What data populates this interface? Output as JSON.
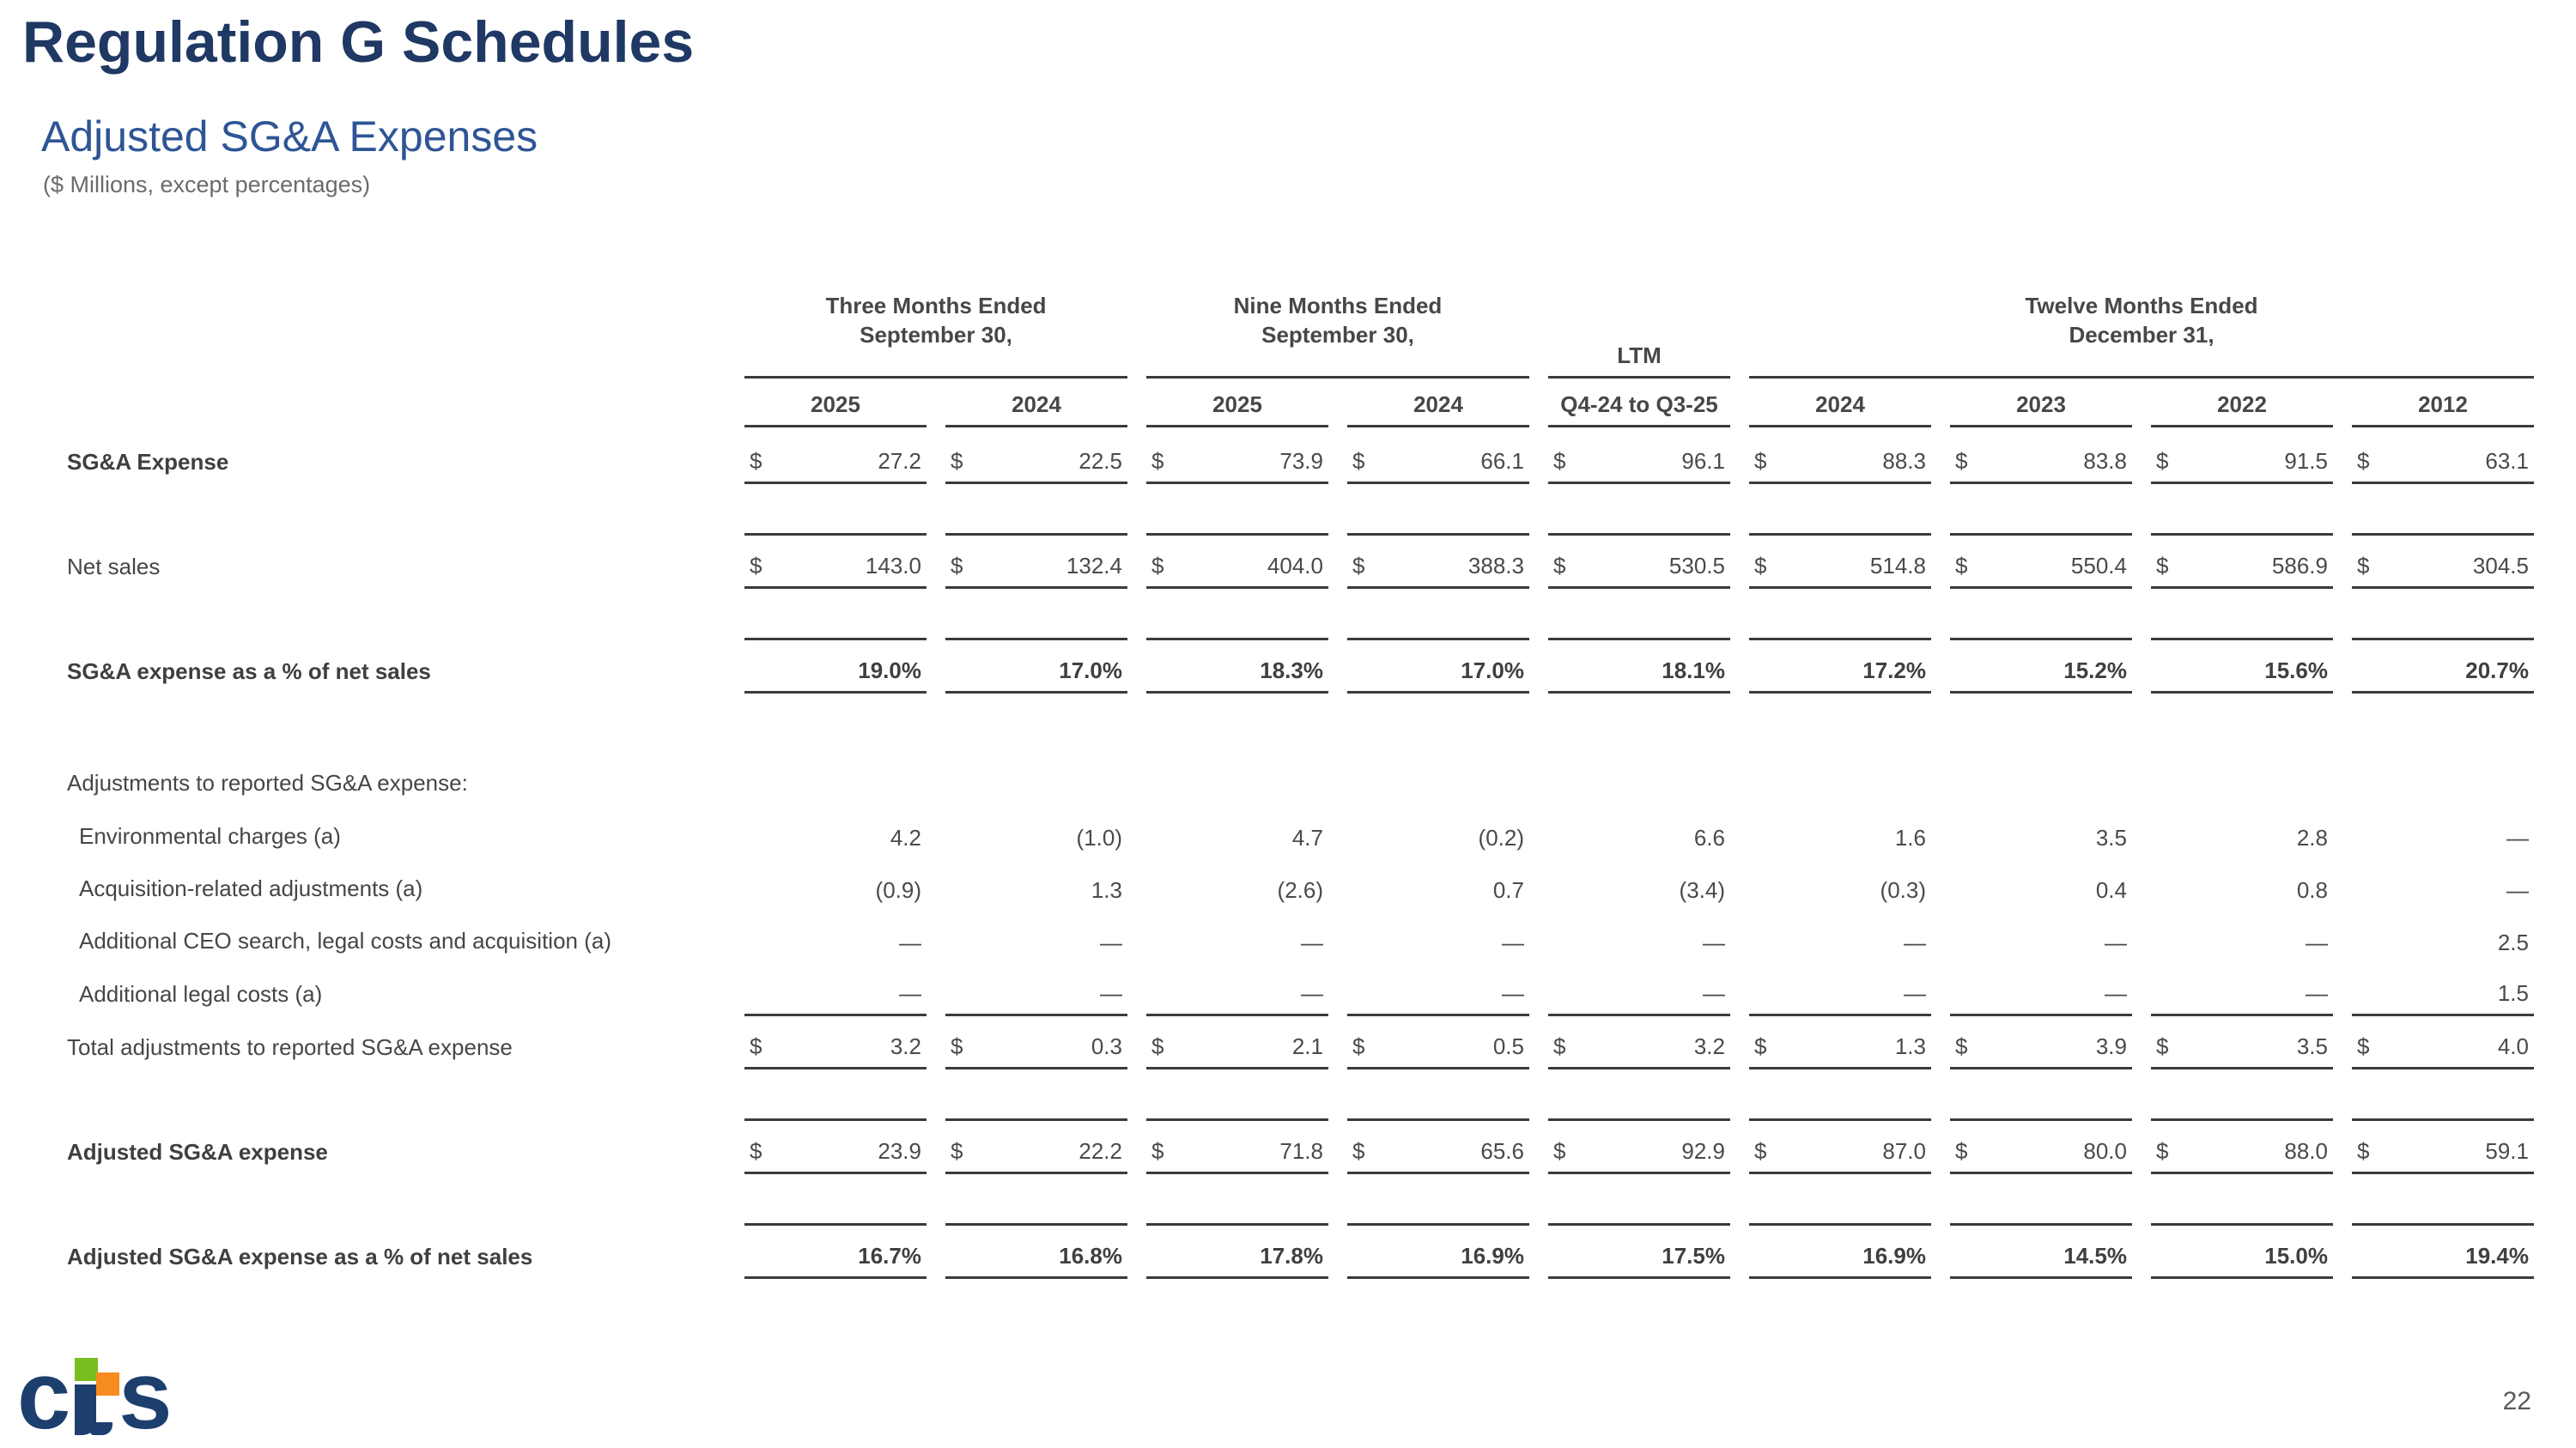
{
  "slide": {
    "title": "Regulation G Schedules",
    "subtitle": "Adjusted SG&A Expenses",
    "units_note": "($ Millions, except percentages)",
    "page_number": "22",
    "logo": {
      "c": "c",
      "s": "s",
      "name": "cts"
    },
    "colors": {
      "title_navy": "#1f3864",
      "subtitle_blue": "#2e5596",
      "text_gray": "#464646",
      "rule_gray": "#3b3b3b",
      "logo_navy": "#1c3f6e",
      "logo_green": "#78be20",
      "logo_orange": "#f68b1f"
    }
  },
  "table": {
    "dollar_sign": "$",
    "column_groups": [
      {
        "label": "Three Months Ended\nSeptember 30,",
        "span": 2
      },
      {
        "label": "Nine Months Ended\nSeptember 30,",
        "span": 2
      },
      {
        "label": "LTM",
        "span": 1
      },
      {
        "label": "Twelve Months Ended\nDecember 31,",
        "span": 4
      }
    ],
    "columns": [
      "2025",
      "2024",
      "2025",
      "2024",
      "Q4-24 to Q3-25",
      "2024",
      "2023",
      "2022",
      "2012"
    ],
    "rows": [
      {
        "label": "SG&A Expense",
        "bold": true,
        "dollar": true,
        "underline": true,
        "values": [
          "27.2",
          "22.5",
          "73.9",
          "66.1",
          "96.1",
          "88.3",
          "83.8",
          "91.5",
          "63.1"
        ]
      },
      {
        "label": "Net sales",
        "dollar": true,
        "underline": true,
        "values": [
          "143.0",
          "132.4",
          "404.0",
          "388.3",
          "530.5",
          "514.8",
          "550.4",
          "586.9",
          "304.5"
        ]
      },
      {
        "label": "SG&A expense as a % of net sales",
        "bold": true,
        "bold_values": true,
        "underline": true,
        "values": [
          "19.0%",
          "17.0%",
          "18.3%",
          "17.0%",
          "18.1%",
          "17.2%",
          "15.2%",
          "15.6%",
          "20.7%"
        ]
      },
      {
        "label": "Adjustments to reported SG&A expense:",
        "values": [
          "",
          "",
          "",
          "",
          "",
          "",
          "",
          "",
          ""
        ]
      },
      {
        "label": "Environmental charges (a)",
        "indent": true,
        "values": [
          "4.2",
          "(1.0)",
          "4.7",
          "(0.2)",
          "6.6",
          "1.6",
          "3.5",
          "2.8",
          "—"
        ]
      },
      {
        "label": "Acquisition-related adjustments (a)",
        "indent": true,
        "values": [
          "(0.9)",
          "1.3",
          "(2.6)",
          "0.7",
          "(3.4)",
          "(0.3)",
          "0.4",
          "0.8",
          "—"
        ]
      },
      {
        "label": "Additional CEO search, legal costs and acquisition (a)",
        "indent": true,
        "values": [
          "—",
          "—",
          "—",
          "—",
          "—",
          "—",
          "—",
          "—",
          "2.5"
        ]
      },
      {
        "label": "Additional legal costs (a)",
        "indent": true,
        "underline": true,
        "values": [
          "—",
          "—",
          "—",
          "—",
          "—",
          "—",
          "—",
          "—",
          "1.5"
        ]
      },
      {
        "label": "Total adjustments to reported SG&A expense",
        "dollar": true,
        "underline": true,
        "values": [
          "3.2",
          "0.3",
          "2.1",
          "0.5",
          "3.2",
          "1.3",
          "3.9",
          "3.5",
          "4.0"
        ]
      },
      {
        "label": "Adjusted SG&A expense",
        "bold": true,
        "dollar": true,
        "underline": true,
        "values": [
          "23.9",
          "22.2",
          "71.8",
          "65.6",
          "92.9",
          "87.0",
          "80.0",
          "88.0",
          "59.1"
        ]
      },
      {
        "label": "Adjusted SG&A expense as a % of net sales",
        "bold": true,
        "bold_values": true,
        "underline": true,
        "values": [
          "16.7%",
          "16.8%",
          "17.8%",
          "16.9%",
          "17.5%",
          "16.9%",
          "14.5%",
          "15.0%",
          "19.4%"
        ]
      }
    ]
  }
}
